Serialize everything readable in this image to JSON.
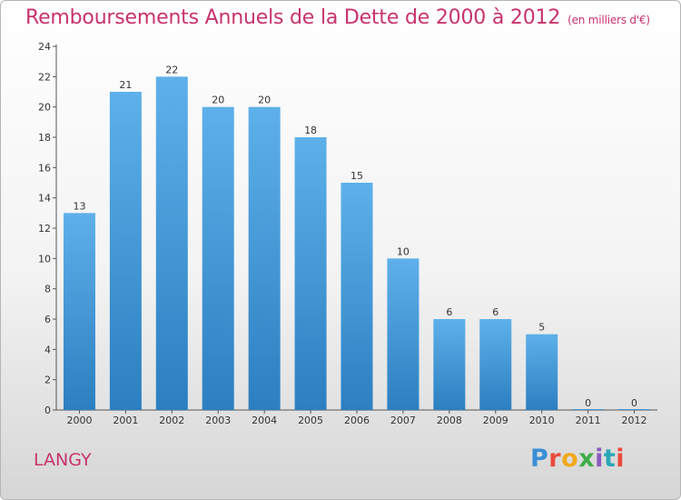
{
  "header": {
    "title": "Remboursements Annuels de la Dette de 2000 à 2012",
    "subtitle": "(en milliers d'€)"
  },
  "footer": {
    "town": "LANGY",
    "brand": [
      "P",
      "r",
      "o",
      "x",
      "i",
      "t",
      "i"
    ]
  },
  "colors": {
    "title": "#c8336b",
    "bar_top": "#5eb0ea",
    "bar_bottom": "#2c7fc0"
  },
  "chart_data": {
    "type": "bar",
    "title": "Remboursements Annuels de la Dette de 2000 à 2012",
    "subtitle": "(en milliers d'€)",
    "categories": [
      "2000",
      "2001",
      "2002",
      "2003",
      "2004",
      "2005",
      "2006",
      "2007",
      "2008",
      "2009",
      "2010",
      "2011",
      "2012"
    ],
    "values": [
      13,
      21,
      22,
      20,
      20,
      18,
      15,
      10,
      6,
      6,
      5,
      0,
      0
    ],
    "ylim": [
      0,
      24
    ],
    "yticks": [
      0,
      2,
      4,
      6,
      8,
      10,
      12,
      14,
      16,
      18,
      20,
      22,
      24
    ],
    "grid": false,
    "data_labels": true
  }
}
